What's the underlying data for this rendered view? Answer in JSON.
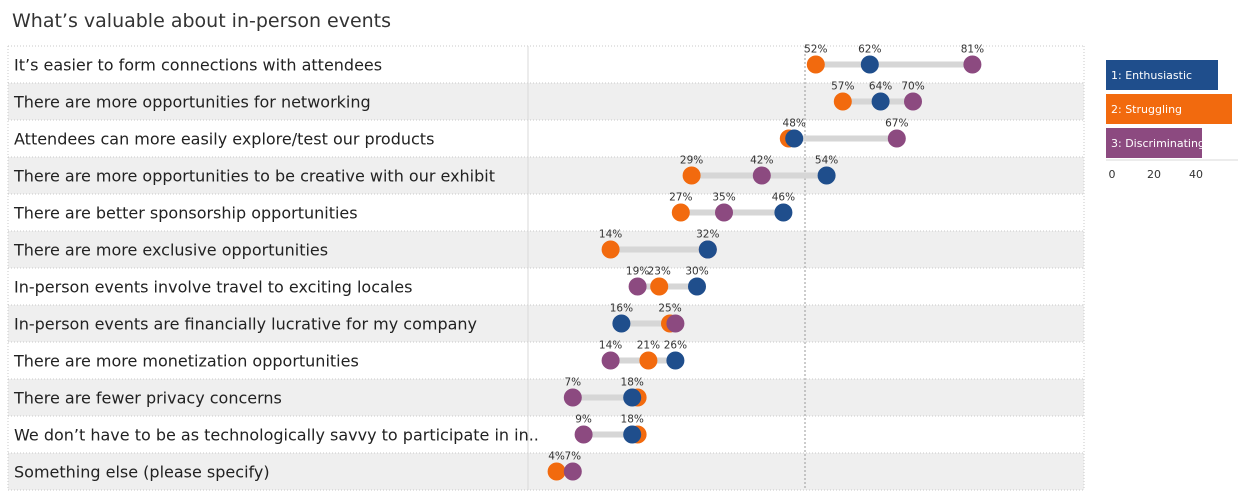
{
  "chart_data": {
    "type": "dot-plot",
    "title": "What’s valuable about in-person events",
    "categories": [
      "It’s easier to form connections with attendees",
      "There are more opportunities for networking",
      "Attendees can more easily explore/test our products",
      "There are more opportunities to be creative with our exhibit",
      "There are better sponsorship opportunities",
      "There are more exclusive opportunities",
      "In-person events involve travel to exciting locales",
      "In-person events are financially lucrative for my company",
      "There are more monetization opportunities",
      "There are fewer privacy concerns",
      "We don’t have to be as technologically savvy to participate in in..",
      "Something else (please specify)"
    ],
    "series": [
      {
        "name": "1: Enthusiastic",
        "color": "#1f4e8c",
        "values": [
          62,
          64,
          48,
          54,
          46,
          32,
          30,
          16,
          26,
          18,
          18,
          null
        ]
      },
      {
        "name": "2: Struggling",
        "color": "#f26a0e",
        "values": [
          52,
          57,
          47,
          29,
          27,
          14,
          23,
          25,
          21,
          19,
          19,
          4
        ]
      },
      {
        "name": "3: Discriminating",
        "color": "#8c4a80",
        "values": [
          81,
          70,
          67,
          42,
          35,
          32,
          19,
          26,
          14,
          7,
          9,
          7
        ]
      }
    ],
    "labels": [
      [
        "52%",
        "62%",
        "81%"
      ],
      [
        "57%",
        "64%",
        "70%"
      ],
      [
        "48%",
        "67%"
      ],
      [
        "29%",
        "42%",
        "54%"
      ],
      [
        "27%",
        "35%",
        "46%"
      ],
      [
        "14%",
        "32%"
      ],
      [
        "19%",
        "23%",
        "30%"
      ],
      [
        "16%",
        "25%"
      ],
      [
        "14%",
        "21%",
        "26%"
      ],
      [
        "7%",
        "18%"
      ],
      [
        "9%",
        "18%"
      ],
      [
        "4%",
        "7%"
      ]
    ],
    "label_values": [
      [
        52,
        62,
        81
      ],
      [
        57,
        64,
        70
      ],
      [
        48,
        67
      ],
      [
        29,
        42,
        54
      ],
      [
        27,
        35,
        46
      ],
      [
        14,
        32
      ],
      [
        19,
        23,
        30
      ],
      [
        16,
        25
      ],
      [
        14,
        21,
        26
      ],
      [
        7,
        18
      ],
      [
        9,
        18
      ],
      [
        4,
        7
      ]
    ],
    "reference_line": 50,
    "legend_placement": "right",
    "size_scale": {
      "ticks": [
        "0",
        "20",
        "40"
      ],
      "values": [
        0,
        20,
        40
      ]
    }
  }
}
